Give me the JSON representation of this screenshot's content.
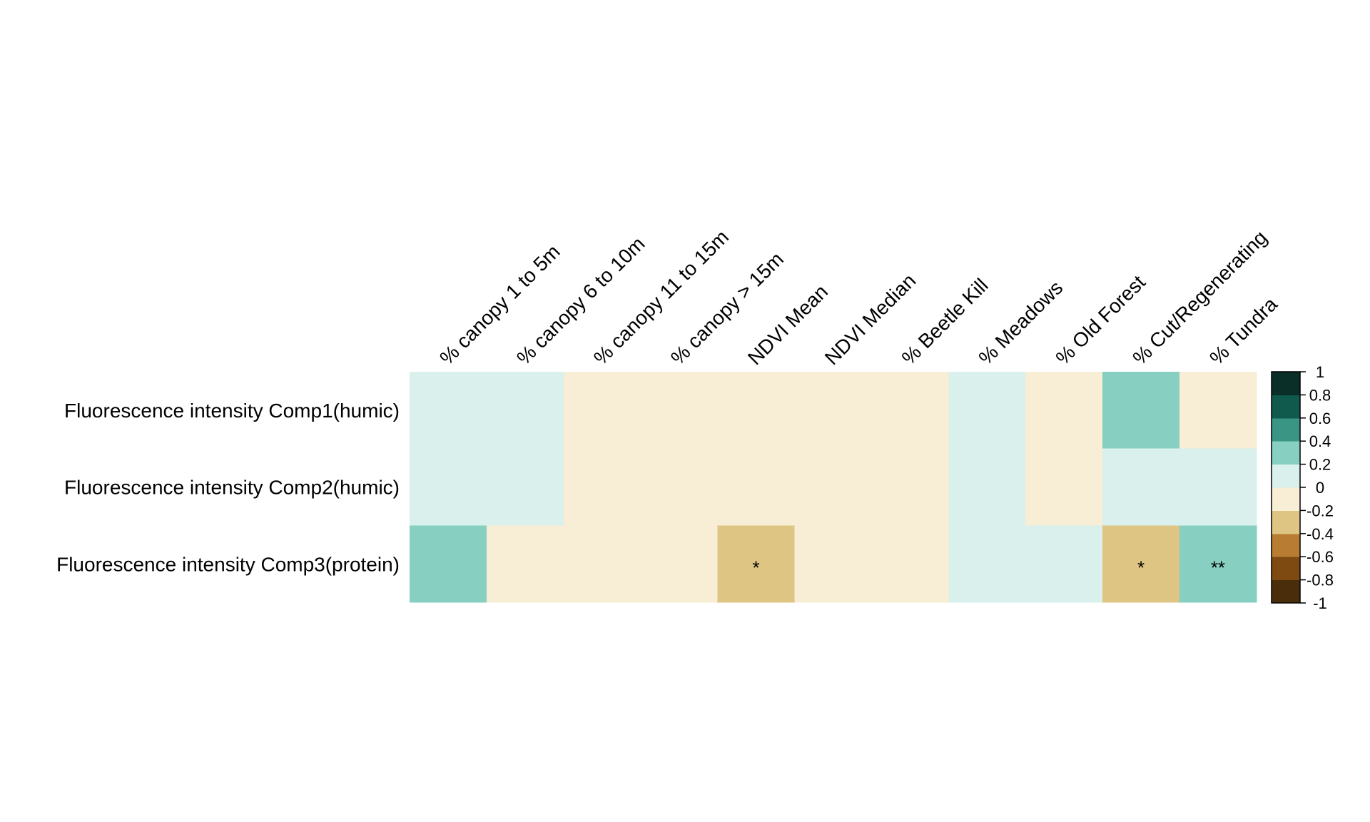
{
  "chart_data": {
    "type": "heatmap",
    "title": "",
    "columns": [
      "% canopy 1 to 5m",
      "% canopy 6 to 10m",
      "% canopy 11 to 15m",
      "% canopy > 15m",
      "NDVI Mean",
      "NDVI Median",
      "% Beetle Kill",
      "% Meadows",
      "% Old Forest",
      "% Cut/Regenerating",
      "% Tundra"
    ],
    "rows": [
      "Fluorescence intensity Comp1(humic)",
      "Fluorescence intensity Comp2(humic)",
      "Fluorescence intensity Comp3(protein)"
    ],
    "values": [
      [
        0.1,
        0.1,
        -0.1,
        -0.1,
        -0.1,
        -0.1,
        -0.1,
        0.1,
        -0.1,
        0.3,
        -0.1
      ],
      [
        0.1,
        0.1,
        -0.1,
        -0.1,
        -0.1,
        -0.1,
        -0.1,
        0.1,
        -0.1,
        0.1,
        0.1
      ],
      [
        0.3,
        -0.1,
        -0.1,
        -0.1,
        -0.3,
        -0.1,
        -0.1,
        0.1,
        0.1,
        -0.3,
        0.3
      ]
    ],
    "significance": [
      [
        "",
        "",
        "",
        "",
        "",
        "",
        "",
        "",
        "",
        "",
        ""
      ],
      [
        "",
        "",
        "",
        "",
        "",
        "",
        "",
        "",
        "",
        "",
        ""
      ],
      [
        "",
        "",
        "",
        "",
        "*",
        "",
        "",
        "",
        "",
        "*",
        "**"
      ]
    ],
    "color_scale": {
      "range": [
        -1,
        1
      ],
      "bins": [
        {
          "from": -1.0,
          "to": -0.8,
          "color": "#4a2e0c"
        },
        {
          "from": -0.8,
          "to": -0.6,
          "color": "#7f4a12"
        },
        {
          "from": -0.6,
          "to": -0.4,
          "color": "#b87d33"
        },
        {
          "from": -0.4,
          "to": -0.2,
          "color": "#dfc583"
        },
        {
          "from": -0.2,
          "to": 0.0,
          "color": "#f7eed5"
        },
        {
          "from": 0.0,
          "to": 0.2,
          "color": "#d9f0ec"
        },
        {
          "from": 0.2,
          "to": 0.4,
          "color": "#86cfc1"
        },
        {
          "from": 0.4,
          "to": 0.6,
          "color": "#3a9585"
        },
        {
          "from": 0.6,
          "to": 0.8,
          "color": "#0f5a4c"
        },
        {
          "from": 0.8,
          "to": 1.0,
          "color": "#0a2e28"
        }
      ],
      "tick_labels": [
        "1",
        "0.8",
        "0.6",
        "0.4",
        "0.2",
        "0",
        "-0.2",
        "-0.4",
        "-0.6",
        "-0.8",
        "-1"
      ]
    }
  }
}
